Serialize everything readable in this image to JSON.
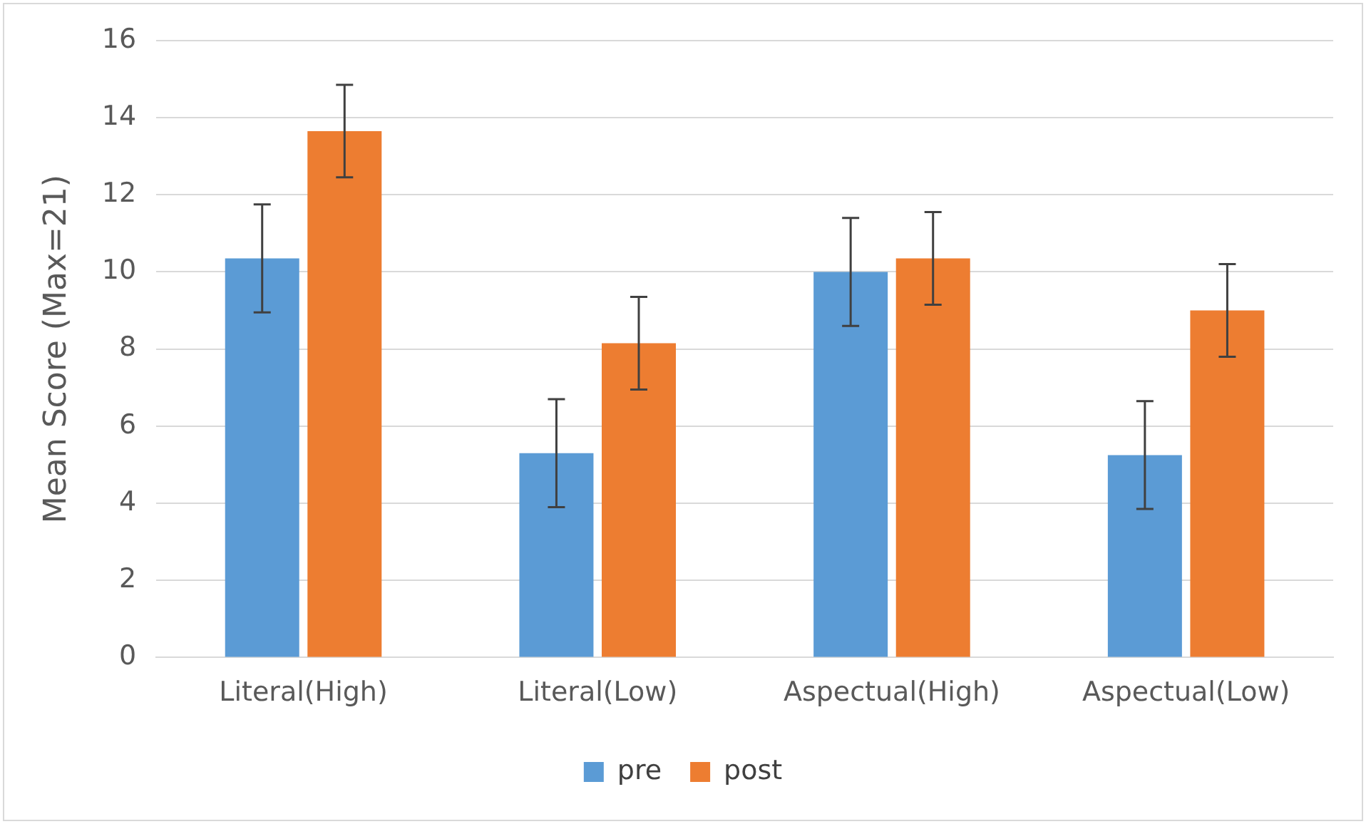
{
  "chart_data": {
    "type": "bar",
    "ylabel": "Mean Score (Max=21)",
    "categories": [
      "Literal(High)",
      "Literal(Low)",
      "Aspectual(High)",
      "Aspectual(Low)"
    ],
    "series": [
      {
        "name": "pre",
        "color": "#5b9bd5",
        "values": [
          10.35,
          5.3,
          10.0,
          5.25
        ],
        "errors": [
          1.4,
          1.4,
          1.4,
          1.4
        ]
      },
      {
        "name": "post",
        "color": "#ed7d31",
        "values": [
          13.65,
          8.15,
          10.35,
          9.0
        ],
        "errors": [
          1.2,
          1.2,
          1.2,
          1.2
        ]
      }
    ],
    "ylim": [
      0,
      16
    ],
    "yticks": [
      0,
      2,
      4,
      6,
      8,
      10,
      12,
      14,
      16
    ],
    "grid": "y",
    "legend": "bottom"
  }
}
